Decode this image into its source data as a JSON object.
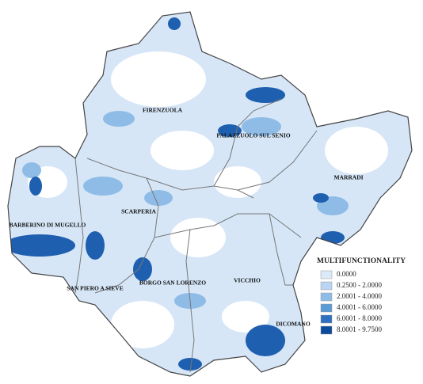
{
  "map": {
    "labels": [
      "FIRENZUOLA",
      "PALAZZUOLO SUL SENIO",
      "MARRADI",
      "SCARPERIA",
      "BARBERINO DI MUGELLO",
      "SAN PIERO A SIEVE",
      "BORGO SAN LORENZO",
      "VICCHIO",
      "DICOMANO"
    ],
    "legend": {
      "title": "MULTIFUNCTIONALITY",
      "items": [
        {
          "label": "0.0000",
          "color": "#dce9f8"
        },
        {
          "label": "0.2500 - 2.0000",
          "color": "#b9d5f1"
        },
        {
          "label": "2.0001 - 4.0000",
          "color": "#8fbce6"
        },
        {
          "label": "4.0001 - 6.0000",
          "color": "#5b9bd5"
        },
        {
          "label": "6.0001 - 8.0000",
          "color": "#2f6fbf"
        },
        {
          "label": "8.0001 - 9.7500",
          "color": "#0b4a9c"
        }
      ]
    }
  }
}
